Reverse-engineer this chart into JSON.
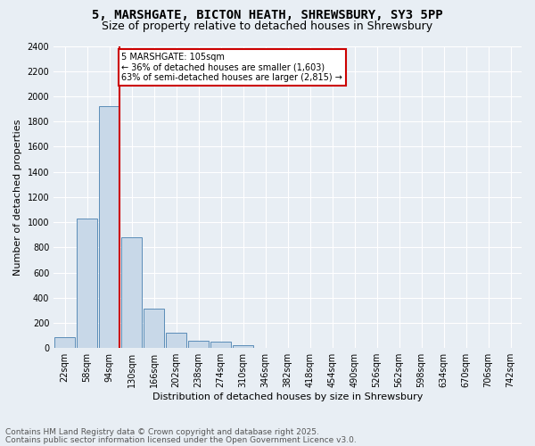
{
  "title1": "5, MARSHGATE, BICTON HEATH, SHREWSBURY, SY3 5PP",
  "title2": "Size of property relative to detached houses in Shrewsbury",
  "xlabel": "Distribution of detached houses by size in Shrewsbury",
  "ylabel": "Number of detached properties",
  "bar_labels": [
    "22sqm",
    "58sqm",
    "94sqm",
    "130sqm",
    "166sqm",
    "202sqm",
    "238sqm",
    "274sqm",
    "310sqm",
    "346sqm",
    "382sqm",
    "418sqm",
    "454sqm",
    "490sqm",
    "526sqm",
    "562sqm",
    "598sqm",
    "634sqm",
    "670sqm",
    "706sqm",
    "742sqm"
  ],
  "bar_values": [
    90,
    1030,
    1920,
    880,
    310,
    120,
    55,
    48,
    22,
    5,
    2,
    1,
    1,
    0,
    0,
    0,
    0,
    0,
    0,
    0,
    0
  ],
  "bar_color": "#c8d8e8",
  "bar_edge_color": "#5b8db8",
  "ylim": [
    0,
    2400
  ],
  "yticks": [
    0,
    200,
    400,
    600,
    800,
    1000,
    1200,
    1400,
    1600,
    1800,
    2000,
    2200,
    2400
  ],
  "vline_color": "#cc0000",
  "annotation_text": "5 MARSHGATE: 105sqm\n← 36% of detached houses are smaller (1,603)\n63% of semi-detached houses are larger (2,815) →",
  "annotation_box_color": "#ffffff",
  "annotation_box_edge": "#cc0000",
  "footer1": "Contains HM Land Registry data © Crown copyright and database right 2025.",
  "footer2": "Contains public sector information licensed under the Open Government Licence v3.0.",
  "bg_color": "#e8eef4",
  "plot_bg_color": "#e8eef4",
  "title_fontsize": 10,
  "subtitle_fontsize": 9,
  "tick_fontsize": 7,
  "label_fontsize": 8,
  "footer_fontsize": 6.5
}
